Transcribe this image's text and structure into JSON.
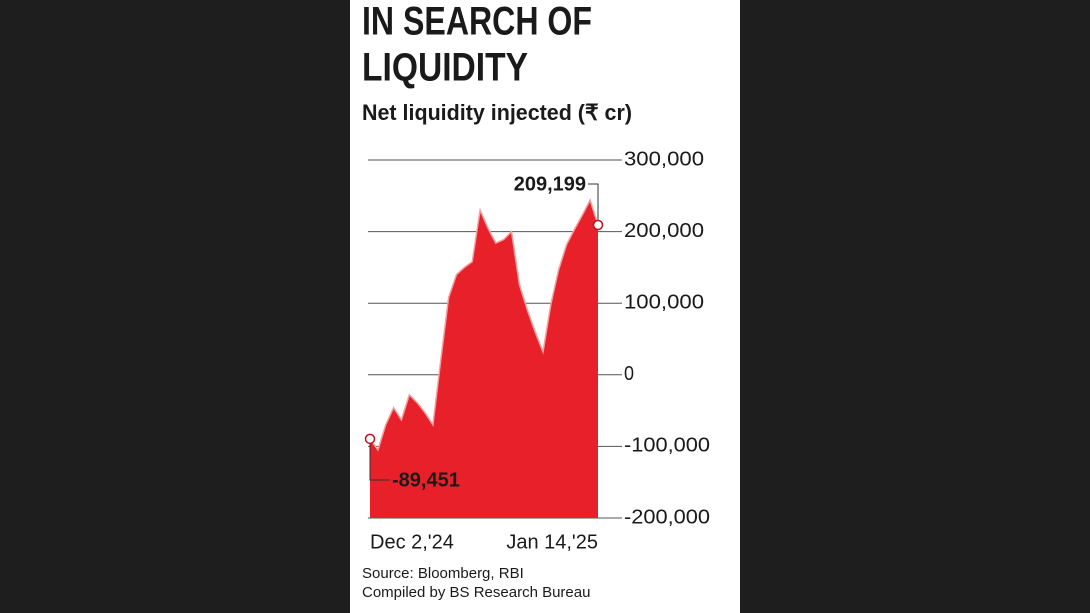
{
  "chart_data": {
    "type": "area",
    "title": "IN SEARCH OF LIQUIDITY",
    "title_lines": [
      "IN SEARCH OF",
      "LIQUIDITY"
    ],
    "subtitle": "Net liquidity injected (₹ cr)",
    "categories": [
      "Dec 2,'24",
      null,
      null,
      null,
      null,
      null,
      null,
      null,
      null,
      null,
      null,
      null,
      null,
      null,
      null,
      null,
      null,
      null,
      null,
      null,
      null,
      null,
      null,
      null,
      null,
      null,
      null,
      null,
      null,
      "Jan 14,'25"
    ],
    "values": [
      -89451,
      -105000,
      -70000,
      -46000,
      -63000,
      -28000,
      -39000,
      -53000,
      -70000,
      21000,
      108000,
      140000,
      150000,
      158000,
      230000,
      205000,
      184000,
      189000,
      200000,
      126000,
      91000,
      60000,
      32000,
      98000,
      147000,
      182000,
      203000,
      223000,
      244000,
      209199
    ],
    "value_labels": [
      "-89,451",
      null,
      null,
      null,
      null,
      null,
      null,
      null,
      null,
      null,
      null,
      null,
      null,
      null,
      null,
      null,
      null,
      null,
      null,
      null,
      null,
      null,
      null,
      null,
      null,
      null,
      null,
      null,
      null,
      "209,199"
    ],
    "color": "#e8202a",
    "ylim": [
      -200000,
      300000
    ],
    "yticks": [
      {
        "value": -200000,
        "label": "-200,000"
      },
      {
        "value": -100000,
        "label": "-100,000"
      },
      0,
      {
        "value": 100000,
        "label": "100,000"
      },
      {
        "value": 200000,
        "label": "200,000"
      },
      {
        "value": 300000,
        "label": "300,000"
      }
    ],
    "grid": true,
    "source": [
      "Source: Bloomberg, RBI",
      "Compiled by BS Research Bureau"
    ]
  }
}
